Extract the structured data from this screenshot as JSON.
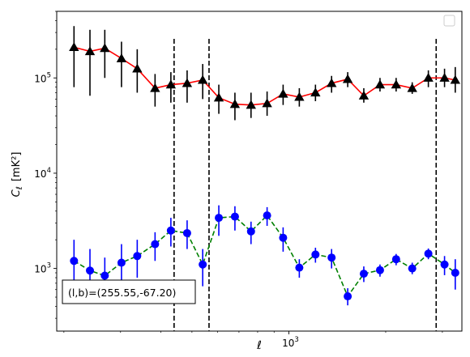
{
  "chart_data": {
    "type": "scatter",
    "title": "",
    "xlabel": "ℓ",
    "ylabel_main": "C",
    "ylabel_sub": "ℓ",
    "ylabel_unit": "[mK²]",
    "xscale": "log",
    "yscale": "log",
    "xlim": [
      190,
      3450
    ],
    "ylim": [
      220,
      500000
    ],
    "x_tick_labels": [
      {
        "value": 1000,
        "base": "10",
        "exp": "3"
      }
    ],
    "y_tick_labels": [
      {
        "value": 1000,
        "base": "10",
        "exp": "3"
      },
      {
        "value": 10000,
        "base": "10",
        "exp": "4"
      },
      {
        "value": 100000,
        "base": "10",
        "exp": "5"
      }
    ],
    "vlines": [
      440,
      565,
      2870
    ],
    "legend": {
      "placement": "top-right",
      "entries": []
    },
    "annotation": {
      "text": "(l,b)=(255.55,-67.20)",
      "placement": "bottom-left"
    },
    "series": [
      {
        "color": "#000000",
        "line_color": "#ff0000",
        "line_style": "solid",
        "marker": "triangle",
        "points": [
          {
            "x": 215,
            "y": 210000,
            "lo": 80000,
            "hi": 350000
          },
          {
            "x": 241,
            "y": 190000,
            "lo": 65000,
            "hi": 320000
          },
          {
            "x": 268,
            "y": 205000,
            "lo": 100000,
            "hi": 320000
          },
          {
            "x": 302,
            "y": 160000,
            "lo": 80000,
            "hi": 240000
          },
          {
            "x": 338,
            "y": 125000,
            "lo": 70000,
            "hi": 200000
          },
          {
            "x": 384,
            "y": 78000,
            "lo": 50000,
            "hi": 110000
          },
          {
            "x": 430,
            "y": 85000,
            "lo": 55000,
            "hi": 115000
          },
          {
            "x": 483,
            "y": 88000,
            "lo": 55000,
            "hi": 120000
          },
          {
            "x": 540,
            "y": 95000,
            "lo": 60000,
            "hi": 140000
          },
          {
            "x": 606,
            "y": 62000,
            "lo": 42000,
            "hi": 85000
          },
          {
            "x": 680,
            "y": 53000,
            "lo": 36000,
            "hi": 70000
          },
          {
            "x": 763,
            "y": 52000,
            "lo": 38000,
            "hi": 70000
          },
          {
            "x": 856,
            "y": 54000,
            "lo": 40000,
            "hi": 72000
          },
          {
            "x": 960,
            "y": 68000,
            "lo": 52000,
            "hi": 85000
          },
          {
            "x": 1078,
            "y": 63000,
            "lo": 50000,
            "hi": 78000
          },
          {
            "x": 1210,
            "y": 70000,
            "lo": 57000,
            "hi": 85000
          },
          {
            "x": 1358,
            "y": 88000,
            "lo": 70000,
            "hi": 105000
          },
          {
            "x": 1524,
            "y": 97000,
            "lo": 80000,
            "hi": 115000
          },
          {
            "x": 1710,
            "y": 65000,
            "lo": 55000,
            "hi": 78000
          },
          {
            "x": 1920,
            "y": 85000,
            "lo": 72000,
            "hi": 100000
          },
          {
            "x": 2155,
            "y": 85000,
            "lo": 72000,
            "hi": 100000
          },
          {
            "x": 2418,
            "y": 78000,
            "lo": 68000,
            "hi": 90000
          },
          {
            "x": 2714,
            "y": 100000,
            "lo": 80000,
            "hi": 120000
          },
          {
            "x": 3047,
            "y": 100000,
            "lo": 80000,
            "hi": 125000
          },
          {
            "x": 3290,
            "y": 95000,
            "lo": 70000,
            "hi": 130000
          }
        ]
      },
      {
        "color": "#0000ff",
        "line_color": "#008000",
        "line_style": "dashed",
        "marker": "circle",
        "points": [
          {
            "x": 215,
            "y": 1200,
            "lo": 600,
            "hi": 2000
          },
          {
            "x": 241,
            "y": 950,
            "lo": 450,
            "hi": 1600
          },
          {
            "x": 268,
            "y": 840,
            "lo": 450,
            "hi": 1300
          },
          {
            "x": 302,
            "y": 1150,
            "lo": 600,
            "hi": 1800
          },
          {
            "x": 338,
            "y": 1350,
            "lo": 800,
            "hi": 2000
          },
          {
            "x": 384,
            "y": 1800,
            "lo": 1200,
            "hi": 2400
          },
          {
            "x": 430,
            "y": 2500,
            "lo": 1700,
            "hi": 3400
          },
          {
            "x": 483,
            "y": 2350,
            "lo": 1600,
            "hi": 3200
          },
          {
            "x": 540,
            "y": 1100,
            "lo": 650,
            "hi": 1600
          },
          {
            "x": 606,
            "y": 3400,
            "lo": 2200,
            "hi": 4600
          },
          {
            "x": 680,
            "y": 3500,
            "lo": 2500,
            "hi": 4500
          },
          {
            "x": 763,
            "y": 2450,
            "lo": 1800,
            "hi": 3100
          },
          {
            "x": 856,
            "y": 3600,
            "lo": 2800,
            "hi": 4400
          },
          {
            "x": 960,
            "y": 2100,
            "lo": 1500,
            "hi": 2700
          },
          {
            "x": 1078,
            "y": 1020,
            "lo": 800,
            "hi": 1250
          },
          {
            "x": 1210,
            "y": 1400,
            "lo": 1150,
            "hi": 1650
          },
          {
            "x": 1358,
            "y": 1300,
            "lo": 1000,
            "hi": 1600
          },
          {
            "x": 1524,
            "y": 510,
            "lo": 410,
            "hi": 620
          },
          {
            "x": 1710,
            "y": 880,
            "lo": 720,
            "hi": 1050
          },
          {
            "x": 1920,
            "y": 960,
            "lo": 820,
            "hi": 1100
          },
          {
            "x": 2155,
            "y": 1250,
            "lo": 1080,
            "hi": 1420
          },
          {
            "x": 2418,
            "y": 1000,
            "lo": 870,
            "hi": 1150
          },
          {
            "x": 2714,
            "y": 1430,
            "lo": 1250,
            "hi": 1620
          },
          {
            "x": 3047,
            "y": 1100,
            "lo": 850,
            "hi": 1350
          },
          {
            "x": 3290,
            "y": 900,
            "lo": 600,
            "hi": 1250
          }
        ]
      }
    ]
  }
}
